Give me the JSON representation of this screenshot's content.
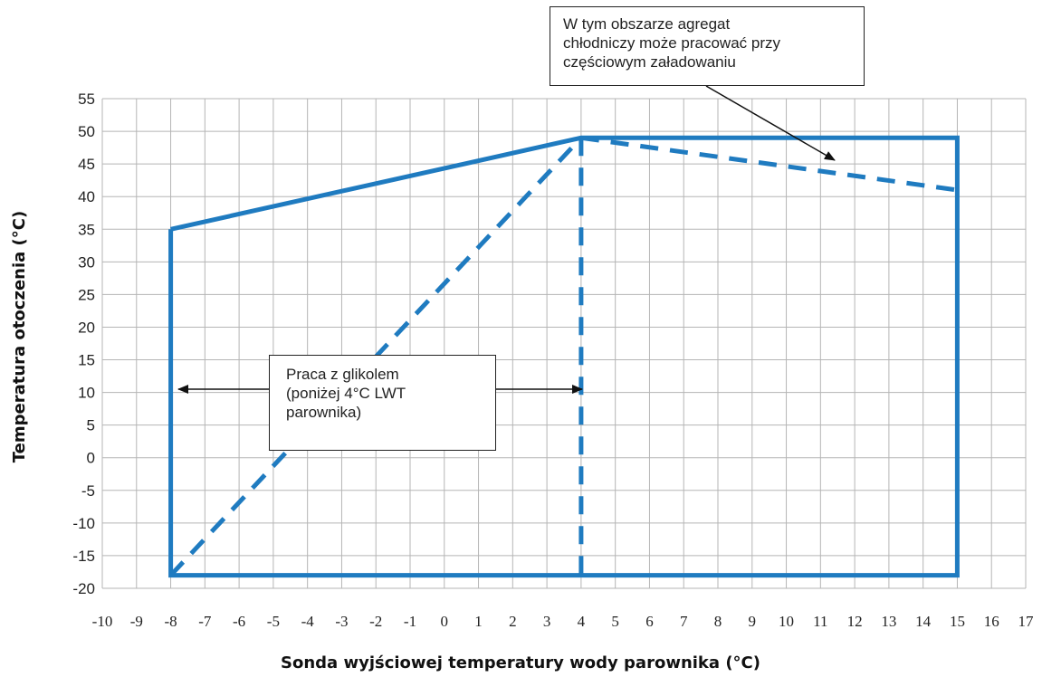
{
  "chart_data": {
    "type": "line",
    "xlabel": "Sonda wyjściowej temperatury wody parownika  (°C)",
    "ylabel": "Temperatura otoczenia (°C)",
    "xlim": [
      -10,
      17
    ],
    "ylim": [
      -20,
      55
    ],
    "x_ticks": [
      "-10",
      "-9",
      "-8",
      "-7",
      "-6",
      "-5",
      "-4",
      "-3",
      "-2",
      "-1",
      "0",
      "1",
      "2",
      "3",
      "4",
      "5",
      "6",
      "7",
      "8",
      "9",
      "10",
      "11",
      "12",
      "13",
      "14",
      "15",
      "16",
      "17"
    ],
    "y_ticks": [
      "55",
      "50",
      "45",
      "40",
      "35",
      "30",
      "25",
      "20",
      "15",
      "10",
      "5",
      "0",
      "-5",
      "-10",
      "-15",
      "-20"
    ],
    "grid": true,
    "color": "#1f7bc0",
    "series": [
      {
        "style": "solid",
        "x": [
          -8,
          4,
          15,
          15,
          -8,
          -8
        ],
        "y": [
          35,
          49,
          49,
          -18,
          -18,
          35
        ]
      },
      {
        "style": "dashed",
        "x": [
          -8,
          4
        ],
        "y": [
          -18,
          49
        ]
      },
      {
        "style": "dashed",
        "x": [
          4,
          4
        ],
        "y": [
          49,
          -18
        ]
      },
      {
        "style": "dashed",
        "x": [
          4,
          15
        ],
        "y": [
          49,
          41
        ]
      }
    ],
    "annotations": [
      {
        "lines": [
          "W tym obszarze agregat",
          "chłodniczy może pracować przy",
          "częściowym załadowaniu"
        ]
      },
      {
        "lines": [
          "Praca z glikolem",
          "(poniżej 4°C LWT",
          "parownika)"
        ]
      }
    ]
  }
}
